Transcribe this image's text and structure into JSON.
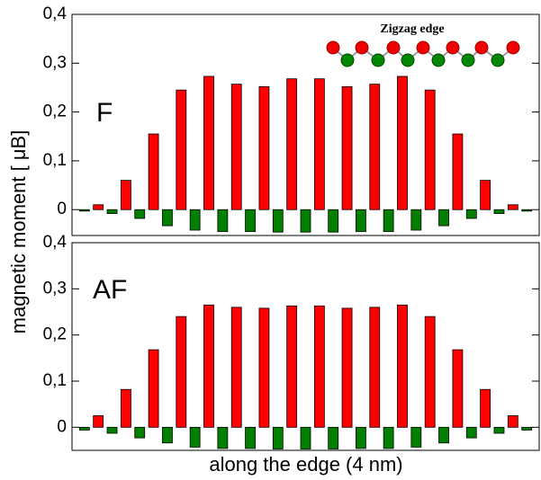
{
  "chart_data": [
    {
      "type": "bar",
      "annotation": "F",
      "inset_label": "Zigzag edge",
      "ylabel": "magnetic moment [ μB]",
      "ylim": [
        -0.053,
        0.4
      ],
      "yticks": [
        0,
        {
          "value": 0.1,
          "label": "0,1"
        },
        {
          "value": 0.2,
          "label": "0,2"
        },
        {
          "value": 0.3,
          "label": "0,3"
        },
        {
          "value": 0.4,
          "label": "0,4"
        }
      ],
      "series": [
        {
          "color": "#ff0000",
          "values": [
            null,
            0.01,
            null,
            0.06,
            null,
            0.155,
            null,
            0.245,
            null,
            0.273,
            null,
            0.257,
            null,
            0.252,
            null,
            0.268,
            null,
            0.268,
            null,
            0.252,
            null,
            0.257,
            null,
            0.273,
            null,
            0.245,
            null,
            0.155,
            null,
            0.06,
            null,
            0.01,
            null
          ]
        },
        {
          "color": "#007f00",
          "values": [
            -0.003,
            null,
            -0.008,
            null,
            -0.018,
            null,
            -0.033,
            null,
            -0.042,
            null,
            -0.045,
            null,
            -0.045,
            null,
            -0.046,
            null,
            -0.046,
            null,
            -0.046,
            null,
            -0.045,
            null,
            -0.045,
            null,
            -0.042,
            null,
            -0.033,
            null,
            -0.018,
            null,
            -0.008,
            null,
            -0.003
          ]
        }
      ]
    },
    {
      "type": "bar",
      "annotation": "AF",
      "xlabel": "along the edge (4 nm)",
      "ylim": [
        -0.05,
        0.4
      ],
      "yticks": [
        0,
        {
          "value": 0.1,
          "label": "0,1"
        },
        {
          "value": 0.2,
          "label": "0,2"
        },
        {
          "value": 0.3,
          "label": "0,3"
        },
        {
          "value": 0.4,
          "label": "0,4"
        }
      ],
      "series": [
        {
          "color": "#ff0000",
          "values": [
            null,
            0.025,
            null,
            0.082,
            null,
            0.168,
            null,
            0.24,
            null,
            0.265,
            null,
            0.26,
            null,
            0.258,
            null,
            0.263,
            null,
            0.263,
            null,
            0.258,
            null,
            0.26,
            null,
            0.265,
            null,
            0.24,
            null,
            0.168,
            null,
            0.082,
            null,
            0.025,
            null
          ]
        },
        {
          "color": "#007f00",
          "values": [
            -0.006,
            null,
            -0.013,
            null,
            -0.023,
            null,
            -0.034,
            null,
            -0.043,
            null,
            -0.046,
            null,
            -0.046,
            null,
            -0.047,
            null,
            -0.047,
            null,
            -0.047,
            null,
            -0.046,
            null,
            -0.046,
            null,
            -0.043,
            null,
            -0.034,
            null,
            -0.023,
            null,
            -0.013,
            null,
            -0.006
          ]
        }
      ]
    }
  ]
}
